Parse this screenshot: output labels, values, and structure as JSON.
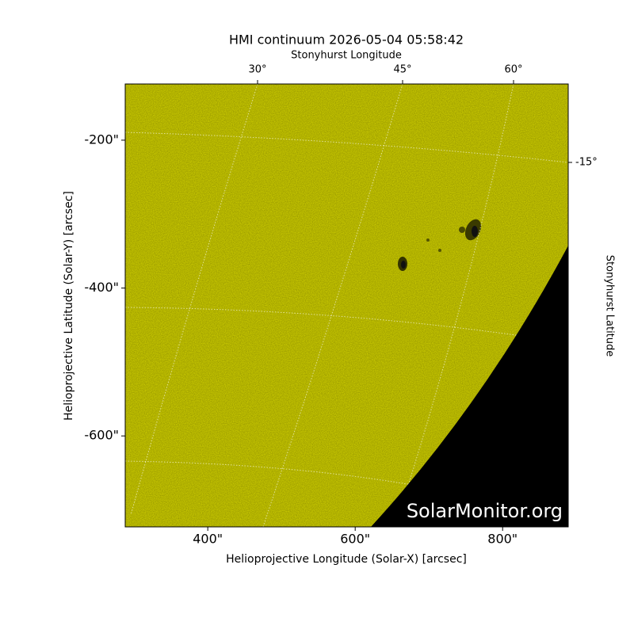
{
  "chart_data": {
    "type": "image",
    "title": "HMI continuum 2026-05-04 05:58:42",
    "x_label": "Helioprojective Longitude (Solar-X) [arcsec]",
    "y_label": "Helioprojective Latitude (Solar-Y) [arcsec]",
    "top_label": "Stonyhurst Longitude",
    "right_label": "Stonyhurst Latitude",
    "color": "#cccc00",
    "xlim": [
      288,
      889
    ],
    "ylim": [
      -723,
      -124
    ],
    "xticks": [
      {
        "value": 400,
        "label": "400\""
      },
      {
        "value": 600,
        "label": "600\""
      },
      {
        "value": 800,
        "label": "800\""
      }
    ],
    "yticks": [
      {
        "value": -200,
        "label": "-200\""
      },
      {
        "value": -400,
        "label": "-400\""
      },
      {
        "value": -600,
        "label": "-600\""
      }
    ],
    "top_ticks": [
      {
        "value": 30,
        "label": "30°"
      },
      {
        "value": 45,
        "label": "45°"
      },
      {
        "value": 60,
        "label": "60°"
      }
    ],
    "right_ticks": [
      {
        "value": -15,
        "label": "-15°"
      }
    ],
    "watermark": "SolarMonitor.org"
  }
}
